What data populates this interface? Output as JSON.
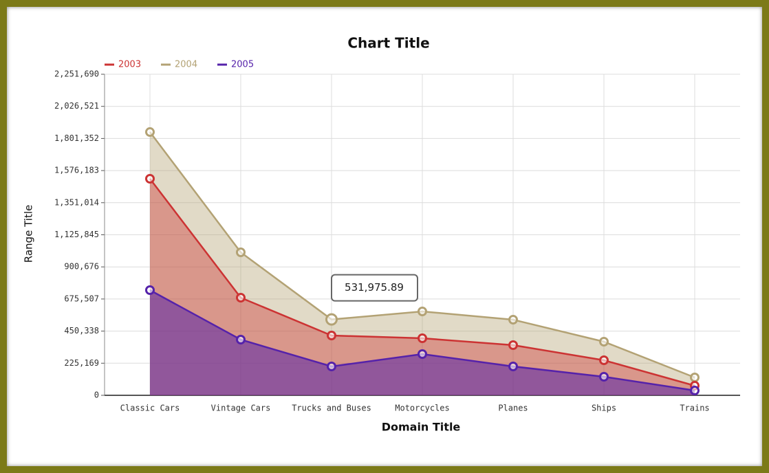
{
  "chart_data": {
    "type": "area",
    "title": "Chart Title",
    "x_label": "Domain Title",
    "y_label": "Range Title",
    "categories": [
      "Classic Cars",
      "Vintage Cars",
      "Trucks and Buses",
      "Motorcycles",
      "Planes",
      "Ships",
      "Trains"
    ],
    "series": [
      {
        "name": "2003",
        "color": "#cc3333",
        "values": [
          1518800,
          684700,
          419500,
          400200,
          352000,
          245900,
          67500
        ]
      },
      {
        "name": "2004",
        "color": "#b3a274",
        "values": [
          1846600,
          1002900,
          531975.89,
          588200,
          530400,
          376100,
          125400
        ]
      },
      {
        "name": "2005",
        "color": "#5522aa",
        "values": [
          737700,
          390600,
          202500,
          289300,
          202500,
          130200,
          33800
        ]
      }
    ],
    "tooltip": "531,975.89",
    "ylim": [
      0,
      2251690
    ],
    "yticks": [
      0,
      {
        "value": 225169,
        "label": "225,169"
      },
      {
        "value": 450338,
        "label": "450,338"
      },
      {
        "value": 675507,
        "label": "675,507"
      },
      {
        "value": 900676,
        "label": "900,676"
      },
      {
        "value": 1125845,
        "label": "1,125,845"
      },
      {
        "value": 1351014,
        "label": "1,351,014"
      },
      {
        "value": 1576183,
        "label": "1,576,183"
      },
      {
        "value": 1801352,
        "label": "1,801,352"
      },
      {
        "value": 2026521,
        "label": "2,026,521"
      },
      {
        "value": 2251690,
        "label": "2,251,690"
      }
    ],
    "grid": true,
    "legend": "top-left"
  }
}
